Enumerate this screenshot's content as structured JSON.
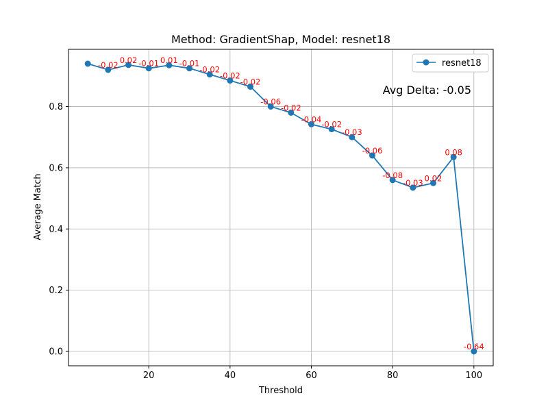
{
  "chart_data": {
    "type": "line",
    "title": "Method: GradientShap, Model: resnet18",
    "xlabel": "Threshold",
    "ylabel": "Average Match",
    "xlim": [
      0.25,
      104.75
    ],
    "ylim": [
      -0.047,
      0.987
    ],
    "xticks": [
      20,
      40,
      60,
      80,
      100
    ],
    "yticks": [
      0.0,
      0.2,
      0.4,
      0.6,
      0.8
    ],
    "xtick_labels": [
      "20",
      "40",
      "60",
      "80",
      "100"
    ],
    "ytick_labels": [
      "0.0",
      "0.2",
      "0.4",
      "0.6",
      "0.8"
    ],
    "grid": true,
    "legend": {
      "position": "top-right",
      "entries": [
        "resnet18"
      ]
    },
    "annotation": "Avg Delta: -0.05",
    "series": [
      {
        "name": "resnet18",
        "color": "#1f77b4",
        "marker": "circle",
        "x": [
          5,
          10,
          15,
          20,
          25,
          30,
          35,
          40,
          45,
          50,
          55,
          60,
          65,
          70,
          75,
          80,
          85,
          90,
          95,
          100
        ],
        "y": [
          0.94,
          0.92,
          0.936,
          0.925,
          0.935,
          0.925,
          0.905,
          0.885,
          0.865,
          0.8,
          0.78,
          0.742,
          0.726,
          0.7,
          0.64,
          0.56,
          0.535,
          0.55,
          0.635,
          0.0
        ],
        "deltas": [
          "",
          "-0.02",
          "0.02",
          "-0.01",
          "0.01",
          "-0.01",
          "-0.02",
          "-0.02",
          "-0.02",
          "-0.06",
          "-0.02",
          "-0.04",
          "-0.02",
          "-0.03",
          "-0.06",
          "-0.08",
          "-0.03",
          "0.02",
          "0.08",
          "-0.64"
        ]
      }
    ],
    "delta_color": "#ff0000"
  }
}
